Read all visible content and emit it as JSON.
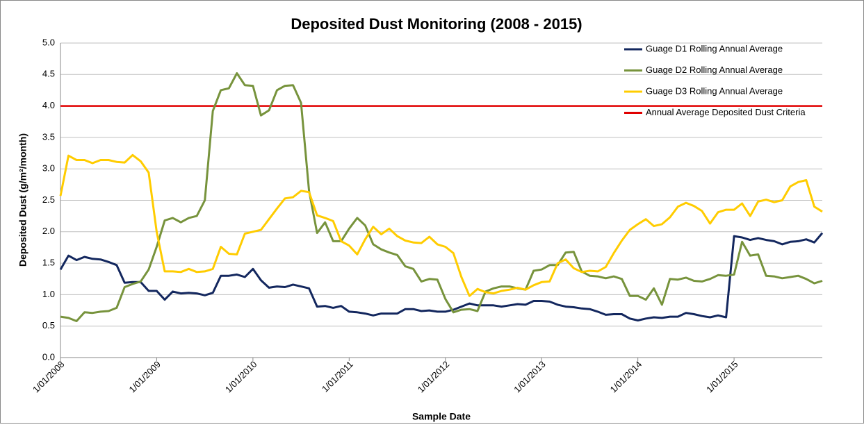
{
  "chart_data": {
    "type": "line",
    "title": "Deposited Dust Monitoring (2008 - 2015)",
    "x_label": "Sample Date",
    "y_label": "Deposited Dust (g/m²/month)",
    "categories": [
      "1/01/2008",
      null,
      null,
      null,
      null,
      null,
      null,
      null,
      null,
      null,
      null,
      null,
      "1/01/2009",
      null,
      null,
      null,
      null,
      null,
      null,
      null,
      null,
      null,
      null,
      null,
      "1/01/2010",
      null,
      null,
      null,
      null,
      null,
      null,
      null,
      null,
      null,
      null,
      null,
      "1/01/2011",
      null,
      null,
      null,
      null,
      null,
      null,
      null,
      null,
      null,
      null,
      null,
      "1/01/2012",
      null,
      null,
      null,
      null,
      null,
      null,
      null,
      null,
      null,
      null,
      null,
      "1/01/2013",
      null,
      null,
      null,
      null,
      null,
      null,
      null,
      null,
      null,
      null,
      null,
      "1/01/2014",
      null,
      null,
      null,
      null,
      null,
      null,
      null,
      null,
      null,
      null,
      null,
      "1/01/2015",
      null,
      null,
      null,
      null,
      null,
      null,
      null,
      null,
      null,
      null,
      null
    ],
    "series": [
      {
        "name": "Guage D1 Rolling Annual Average",
        "color": "#13275e",
        "values": [
          1.4,
          1.62,
          1.55,
          1.6,
          1.57,
          1.56,
          1.52,
          1.47,
          1.19,
          1.2,
          1.2,
          1.06,
          1.06,
          0.92,
          1.05,
          1.02,
          1.03,
          1.02,
          0.99,
          1.03,
          1.3,
          1.3,
          1.32,
          1.28,
          1.41,
          1.23,
          1.11,
          1.13,
          1.12,
          1.16,
          1.13,
          1.1,
          0.81,
          0.82,
          0.79,
          0.82,
          0.73,
          0.72,
          0.7,
          0.67,
          0.7,
          0.7,
          0.7,
          0.77,
          0.77,
          0.74,
          0.75,
          0.73,
          0.73,
          0.76,
          0.81,
          0.86,
          0.83,
          0.83,
          0.83,
          0.81,
          0.83,
          0.85,
          0.84,
          0.9,
          0.9,
          0.89,
          0.84,
          0.81,
          0.8,
          0.78,
          0.77,
          0.73,
          0.68,
          0.69,
          0.69,
          0.62,
          0.59,
          0.62,
          0.64,
          0.63,
          0.65,
          0.65,
          0.71,
          0.69,
          0.66,
          0.64,
          0.67,
          0.64,
          1.93,
          1.91,
          1.87,
          1.9,
          1.87,
          1.85,
          1.8,
          1.84,
          1.85,
          1.88,
          1.83,
          1.98
        ]
      },
      {
        "name": "Guage D2 Rolling Annual Average",
        "color": "#77933c",
        "values": [
          0.65,
          0.63,
          0.58,
          0.72,
          0.71,
          0.73,
          0.74,
          0.79,
          1.12,
          1.17,
          1.21,
          1.4,
          1.76,
          2.18,
          2.22,
          2.15,
          2.22,
          2.25,
          2.5,
          3.92,
          4.25,
          4.28,
          4.52,
          4.33,
          4.32,
          3.85,
          3.93,
          4.25,
          4.32,
          4.33,
          4.05,
          2.65,
          1.98,
          2.15,
          1.85,
          1.85,
          2.05,
          2.22,
          2.1,
          1.8,
          1.72,
          1.67,
          1.63,
          1.45,
          1.41,
          1.21,
          1.25,
          1.24,
          0.93,
          0.72,
          0.76,
          0.77,
          0.74,
          1.05,
          1.1,
          1.13,
          1.13,
          1.1,
          1.08,
          1.38,
          1.4,
          1.47,
          1.47,
          1.67,
          1.68,
          1.37,
          1.3,
          1.29,
          1.26,
          1.29,
          1.25,
          0.98,
          0.98,
          0.92,
          1.1,
          0.84,
          1.25,
          1.24,
          1.27,
          1.22,
          1.21,
          1.25,
          1.31,
          1.3,
          1.32,
          1.84,
          1.62,
          1.64,
          1.3,
          1.29,
          1.26,
          1.28,
          1.3,
          1.25,
          1.18,
          1.22
        ]
      },
      {
        "name": "Guage D3 Rolling Annual Average",
        "color": "#ffcc00",
        "values": [
          2.57,
          3.21,
          3.14,
          3.14,
          3.09,
          3.14,
          3.14,
          3.11,
          3.1,
          3.22,
          3.12,
          2.94,
          2.0,
          1.37,
          1.37,
          1.36,
          1.41,
          1.36,
          1.37,
          1.41,
          1.76,
          1.65,
          1.64,
          1.97,
          2.0,
          2.03,
          2.2,
          2.37,
          2.53,
          2.55,
          2.65,
          2.63,
          2.26,
          2.22,
          2.17,
          1.85,
          1.78,
          1.64,
          1.88,
          2.08,
          1.96,
          2.05,
          1.93,
          1.86,
          1.83,
          1.82,
          1.92,
          1.8,
          1.76,
          1.66,
          1.28,
          0.98,
          1.09,
          1.04,
          1.02,
          1.06,
          1.08,
          1.11,
          1.08,
          1.15,
          1.2,
          1.21,
          1.5,
          1.56,
          1.42,
          1.36,
          1.38,
          1.37,
          1.44,
          1.66,
          1.86,
          2.03,
          2.12,
          2.2,
          2.09,
          2.12,
          2.23,
          2.4,
          2.46,
          2.41,
          2.33,
          2.13,
          2.31,
          2.35,
          2.35,
          2.45,
          2.25,
          2.48,
          2.51,
          2.47,
          2.5,
          2.72,
          2.79,
          2.82,
          2.4,
          2.32
        ]
      }
    ],
    "threshold": {
      "name": "Annual Average Deposited Dust Criteria",
      "value": 4,
      "color": "#e00000"
    },
    "ylim": [
      0,
      5
    ],
    "yticks": [
      {
        "value": 0,
        "label": "0.0"
      },
      0.5,
      {
        "value": 1,
        "label": "1.0"
      },
      1.5,
      {
        "value": 2,
        "label": "2.0"
      },
      2.5,
      {
        "value": 3,
        "label": "3.0"
      },
      3.5,
      {
        "value": 4,
        "label": "4.0"
      },
      4.5,
      {
        "value": 5,
        "label": "5.0"
      }
    ],
    "grid": true,
    "legend": "right"
  }
}
